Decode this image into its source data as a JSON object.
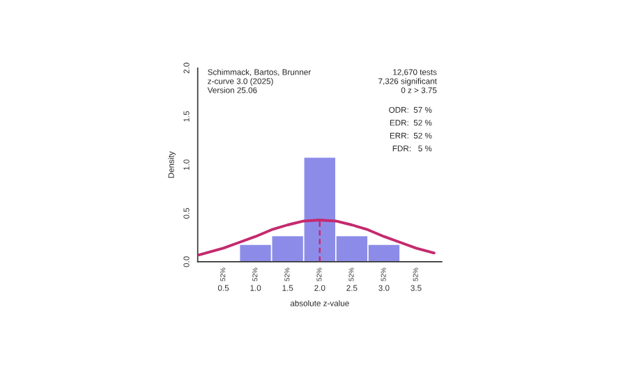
{
  "chart_data": {
    "type": "histogram",
    "xlabel": "absolute z-value",
    "ylabel": "Density",
    "bins": [
      0.75,
      1.25,
      1.75,
      2.25,
      2.75,
      3.25
    ],
    "values": [
      0.18,
      0.27,
      1.08,
      0.27,
      0.18
    ],
    "color": "#8c8ce8",
    "series": [
      {
        "type": "line",
        "color": "#c42a6e",
        "line_style": "solid",
        "x": [
          0.12,
          0.5,
          0.75,
          1.0,
          1.25,
          1.5,
          1.75,
          2.0,
          2.25,
          2.5,
          2.75,
          3.0,
          3.25,
          3.5,
          3.78
        ],
        "values": [
          0.07,
          0.14,
          0.2,
          0.26,
          0.33,
          0.38,
          0.42,
          0.43,
          0.42,
          0.38,
          0.33,
          0.26,
          0.2,
          0.14,
          0.09
        ]
      },
      {
        "type": "line",
        "color": "#c42a6e",
        "line_style": "dashed",
        "x": [
          2.0,
          2.0
        ],
        "values": [
          0.0,
          0.43
        ]
      }
    ],
    "xlim": [
      0.1,
      3.9
    ],
    "ylim": [
      0,
      2.0
    ],
    "xticks": [
      0.5,
      {
        "value": 1,
        "label": "1.0"
      },
      1.5,
      {
        "value": 2,
        "label": "2.0"
      },
      2.5,
      {
        "value": 3,
        "label": "3.0"
      },
      3.5
    ],
    "yticks": [
      {
        "value": 0,
        "label": "0.0"
      },
      0.5,
      {
        "value": 1,
        "label": "1.0"
      },
      1.5,
      {
        "value": 2,
        "label": "2.0"
      }
    ],
    "grid": false,
    "annotations": [
      "Schimmack, Bartos, Brunner\nz-curve 3.0 (2025)\nVersion 25.06",
      "12,670 tests\n7,326 significant\n0 z > 3.75",
      "ODR:  57 %\nEDR:  52 %\nERR:  52 %\nFDR:   5 %",
      "52%",
      "52%",
      "52%",
      "52%",
      "52%",
      "52%",
      "52%"
    ]
  }
}
